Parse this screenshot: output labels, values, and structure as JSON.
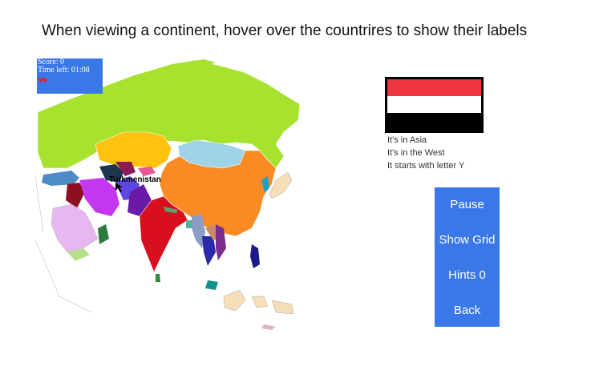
{
  "instruction": "When viewing a continent, hover over the countrires to show their labels",
  "hud": {
    "score": "Score: 0",
    "time_left": "Time left: 01:08",
    "lives": 2,
    "life_icon": "heart-icon",
    "life_color": "#e0262f"
  },
  "map": {
    "hover_label": "Turkmenistan"
  },
  "flag": {
    "colors": [
      "#ef3340",
      "#ffffff",
      "#000000"
    ]
  },
  "clues": [
    "It's in Asia",
    "It's in the West",
    "It starts with letter Y"
  ],
  "menu": {
    "pause": "Pause",
    "show_grid": "Show Grid",
    "hints": "Hints 0",
    "back": "Back"
  },
  "colors": {
    "accent": "#3b78e7"
  }
}
